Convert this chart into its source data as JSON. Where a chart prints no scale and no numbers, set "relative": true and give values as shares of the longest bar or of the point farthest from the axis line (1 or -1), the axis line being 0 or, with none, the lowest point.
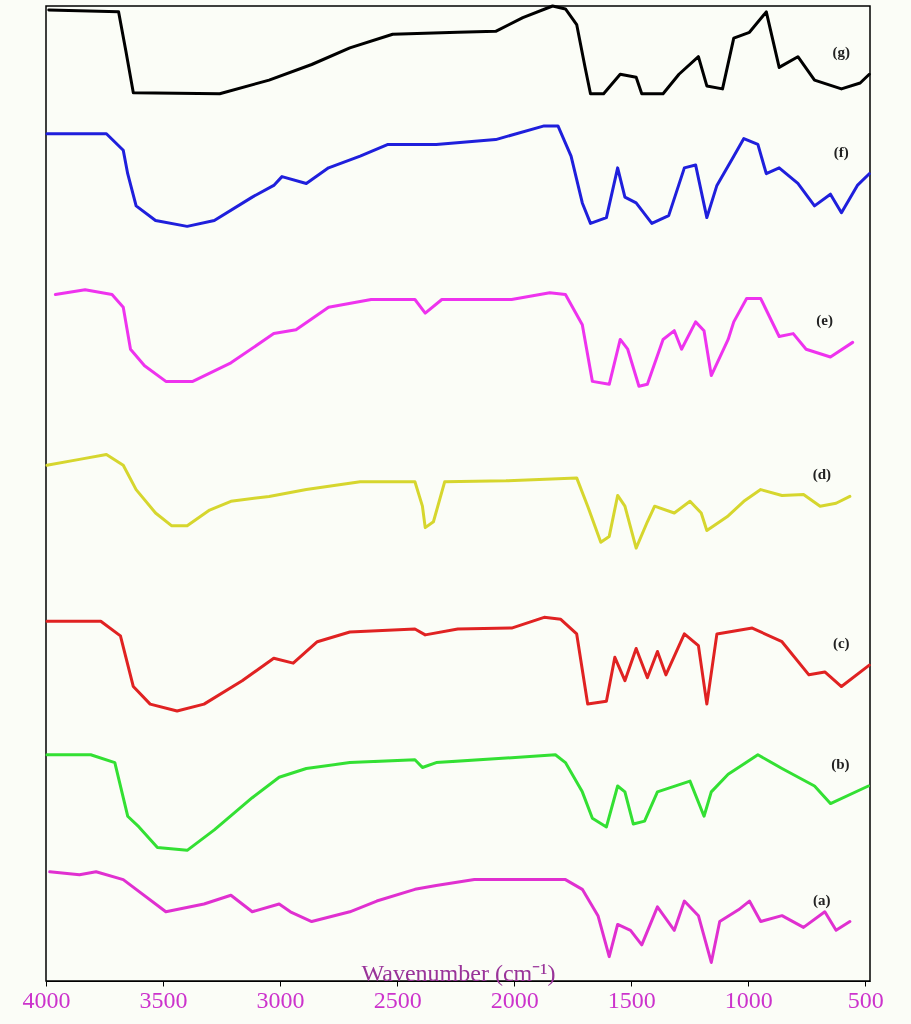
{
  "chart_data": {
    "type": "line",
    "relative": true,
    "xlabel": "Wavenumber (cm⁻¹)",
    "xlim": [
      4000,
      480
    ],
    "xticks": [
      4000,
      3500,
      3000,
      2500,
      2000,
      1500,
      1000,
      500
    ],
    "series": [
      {
        "name": "(g)",
        "color": "#000000",
        "x": [
          3988,
          3690,
          3659,
          3627,
          3258,
          3047,
          2865,
          2702,
          2519,
          2241,
          2079,
          1963,
          1836,
          1781,
          1733,
          1697,
          1674,
          1618,
          1547,
          1479,
          1455,
          1364,
          1296,
          1213,
          1177,
          1110,
          1062,
          995,
          923,
          868,
          788,
          717,
          602,
          522,
          483
        ],
        "values": [
          0.996,
          0.994,
          0.954,
          0.911,
          0.91,
          0.924,
          0.94,
          0.957,
          0.971,
          0.973,
          0.974,
          0.988,
          1.0,
          0.997,
          0.981,
          0.937,
          0.91,
          0.91,
          0.93,
          0.927,
          0.91,
          0.91,
          0.93,
          0.948,
          0.918,
          0.915,
          0.967,
          0.973,
          0.994,
          0.937,
          0.948,
          0.924,
          0.915,
          0.921,
          0.93
        ]
      },
      {
        "name": "(f)",
        "color": "#1f1fdc",
        "x": [
          3996,
          3742,
          3670,
          3651,
          3615,
          3532,
          3397,
          3281,
          3119,
          3027,
          2992,
          2888,
          2793,
          2658,
          2539,
          2333,
          2079,
          1872,
          1813,
          1757,
          1709,
          1674,
          1606,
          1558,
          1527,
          1479,
          1412,
          1340,
          1273,
          1225,
          1177,
          1134,
          1062,
          1019,
          959,
          923,
          868,
          788,
          717,
          649,
          602,
          534,
          483
        ],
        "values": [
          0.869,
          0.869,
          0.852,
          0.828,
          0.795,
          0.78,
          0.774,
          0.78,
          0.804,
          0.816,
          0.825,
          0.818,
          0.834,
          0.846,
          0.858,
          0.858,
          0.863,
          0.877,
          0.877,
          0.846,
          0.798,
          0.777,
          0.783,
          0.834,
          0.804,
          0.798,
          0.777,
          0.785,
          0.834,
          0.837,
          0.783,
          0.816,
          0.846,
          0.864,
          0.858,
          0.828,
          0.834,
          0.818,
          0.795,
          0.807,
          0.788,
          0.816,
          0.828
        ]
      },
      {
        "name": "(e)",
        "color": "#ee33ee",
        "x": [
          3960,
          3833,
          3718,
          3670,
          3639,
          3579,
          3488,
          3373,
          3210,
          3027,
          2932,
          2793,
          2611,
          2424,
          2380,
          2309,
          2011,
          1848,
          1781,
          1709,
          1666,
          1594,
          1547,
          1515,
          1467,
          1431,
          1364,
          1316,
          1285,
          1225,
          1189,
          1158,
          1086,
          1062,
          1007,
          947,
          868,
          808,
          753,
          649,
          554
        ],
        "values": [
          0.704,
          0.709,
          0.704,
          0.691,
          0.648,
          0.631,
          0.615,
          0.615,
          0.634,
          0.664,
          0.668,
          0.691,
          0.699,
          0.699,
          0.685,
          0.699,
          0.699,
          0.706,
          0.704,
          0.673,
          0.615,
          0.612,
          0.658,
          0.648,
          0.61,
          0.612,
          0.658,
          0.667,
          0.648,
          0.676,
          0.667,
          0.621,
          0.658,
          0.676,
          0.7,
          0.7,
          0.661,
          0.664,
          0.648,
          0.64,
          0.655
        ]
      },
      {
        "name": "(d)",
        "color": "#d6d62e",
        "x": [
          3996,
          3857,
          3742,
          3670,
          3615,
          3532,
          3464,
          3397,
          3301,
          3210,
          3047,
          2888,
          2658,
          2424,
          2392,
          2380,
          2345,
          2297,
          2035,
          1733,
          1686,
          1630,
          1594,
          1558,
          1527,
          1479,
          1431,
          1400,
          1316,
          1249,
          1201,
          1177,
          1086,
          1019,
          947,
          856,
          764,
          693,
          625,
          566
        ],
        "values": [
          0.529,
          0.535,
          0.54,
          0.529,
          0.504,
          0.48,
          0.467,
          0.467,
          0.483,
          0.492,
          0.497,
          0.504,
          0.512,
          0.512,
          0.487,
          0.465,
          0.471,
          0.512,
          0.513,
          0.516,
          0.487,
          0.45,
          0.456,
          0.498,
          0.487,
          0.444,
          0.471,
          0.487,
          0.48,
          0.492,
          0.48,
          0.462,
          0.477,
          0.492,
          0.504,
          0.498,
          0.499,
          0.487,
          0.49,
          0.497
        ]
      },
      {
        "name": "(c)",
        "color": "#e02222",
        "x": [
          3996,
          3766,
          3682,
          3627,
          3555,
          3440,
          3325,
          3162,
          3027,
          2944,
          2841,
          2702,
          2424,
          2380,
          2241,
          2011,
          1872,
          1801,
          1733,
          1686,
          1606,
          1570,
          1527,
          1479,
          1431,
          1388,
          1352,
          1273,
          1213,
          1177,
          1134,
          983,
          856,
          741,
          673,
          602,
          483
        ],
        "values": [
          0.369,
          0.369,
          0.354,
          0.302,
          0.284,
          0.277,
          0.284,
          0.308,
          0.331,
          0.326,
          0.348,
          0.358,
          0.361,
          0.355,
          0.361,
          0.362,
          0.373,
          0.371,
          0.356,
          0.284,
          0.287,
          0.332,
          0.308,
          0.341,
          0.311,
          0.338,
          0.314,
          0.356,
          0.344,
          0.284,
          0.356,
          0.362,
          0.348,
          0.314,
          0.317,
          0.302,
          0.324
        ]
      },
      {
        "name": "(b)",
        "color": "#33e033",
        "x": [
          3996,
          3809,
          3706,
          3651,
          3603,
          3524,
          3397,
          3281,
          3119,
          3004,
          2888,
          2702,
          2424,
          2392,
          2333,
          2011,
          1824,
          1781,
          1709,
          1666,
          1606,
          1558,
          1527,
          1491,
          1443,
          1388,
          1249,
          1189,
          1158,
          1086,
          959,
          856,
          717,
          649,
          487
        ],
        "values": [
          0.232,
          0.232,
          0.224,
          0.169,
          0.158,
          0.137,
          0.134,
          0.155,
          0.188,
          0.209,
          0.218,
          0.224,
          0.227,
          0.219,
          0.224,
          0.229,
          0.232,
          0.224,
          0.194,
          0.167,
          0.158,
          0.2,
          0.194,
          0.161,
          0.164,
          0.194,
          0.205,
          0.169,
          0.194,
          0.212,
          0.232,
          0.218,
          0.2,
          0.182,
          0.2
        ]
      },
      {
        "name": "(a)",
        "color": "#e030d0",
        "x": [
          3984,
          3857,
          3786,
          3670,
          3488,
          3325,
          3210,
          3119,
          3004,
          2956,
          2865,
          2702,
          2587,
          2424,
          2333,
          2170,
          1781,
          1709,
          1642,
          1594,
          1558,
          1503,
          1455,
          1388,
          1316,
          1273,
          1213,
          1158,
          1122,
          1042,
          995,
          947,
          856,
          764,
          673,
          625,
          566
        ],
        "values": [
          0.112,
          0.109,
          0.112,
          0.104,
          0.071,
          0.079,
          0.088,
          0.071,
          0.079,
          0.071,
          0.061,
          0.071,
          0.082,
          0.094,
          0.098,
          0.104,
          0.104,
          0.094,
          0.067,
          0.025,
          0.058,
          0.052,
          0.037,
          0.076,
          0.052,
          0.082,
          0.067,
          0.019,
          0.061,
          0.073,
          0.082,
          0.061,
          0.067,
          0.055,
          0.071,
          0.052,
          0.061
        ]
      }
    ]
  }
}
